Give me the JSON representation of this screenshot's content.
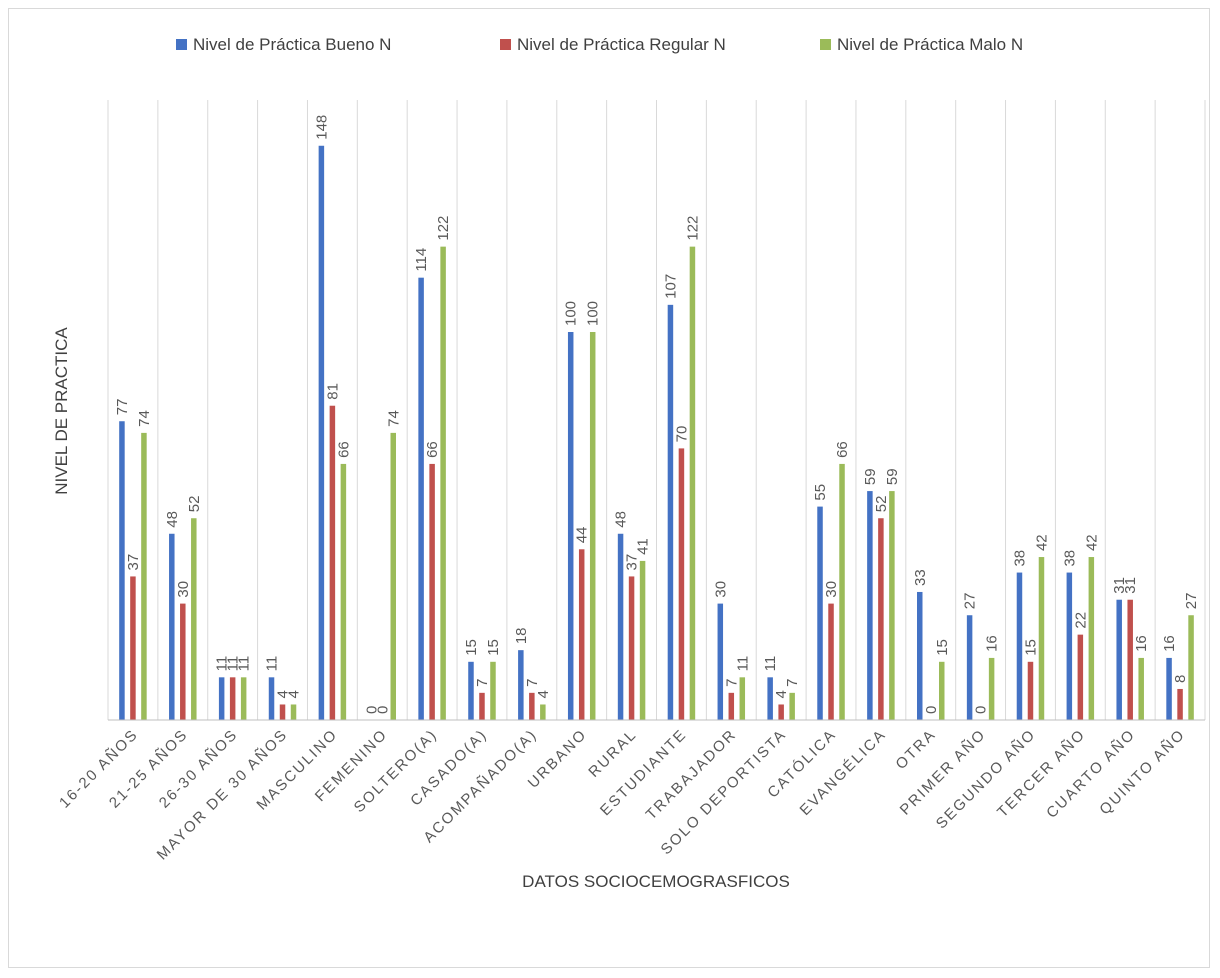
{
  "chart_data": {
    "type": "bar",
    "title": "",
    "xlabel": "DATOS SOCIOCEMOGRASFICOS",
    "ylabel": "NIVEL DE PRACTICA",
    "ylim": [
      0,
      160
    ],
    "grid": true,
    "legend_position": "top",
    "categories": [
      "16-20 AÑOS",
      "21-25 AÑOS",
      "26-30 AÑOS",
      "MAYOR DE 30 AÑOS",
      "MASCULINO",
      "FEMENINO",
      "SOLTERO(A)",
      "CASADO(A)",
      "ACOMPAÑADO(A)",
      "URBANO",
      "RURAL",
      "ESTUDIANTE",
      "TRABAJADOR",
      "SOLO DEPORTISTA",
      "CATÓLICA",
      "EVANGÉLICA",
      "OTRA",
      "PRIMER AÑO",
      "SEGUNDO AÑO",
      "TERCER AÑO",
      "CUARTO AÑO",
      "QUINTO AÑO"
    ],
    "series": [
      {
        "name": "Nivel de Práctica Bueno N",
        "color": "#4472c4",
        "values": [
          77,
          48,
          11,
          11,
          148,
          0,
          114,
          15,
          18,
          100,
          48,
          107,
          30,
          11,
          55,
          59,
          33,
          27,
          38,
          38,
          31,
          16
        ]
      },
      {
        "name": "Nivel de Práctica Regular N",
        "color": "#c0504d",
        "values": [
          37,
          30,
          11,
          4,
          81,
          0,
          66,
          7,
          7,
          44,
          37,
          70,
          7,
          4,
          30,
          52,
          0,
          0,
          15,
          22,
          31,
          8
        ]
      },
      {
        "name": "Nivel de Práctica Malo N",
        "color": "#9bbb59",
        "values": [
          74,
          52,
          11,
          4,
          66,
          74,
          122,
          15,
          4,
          100,
          41,
          122,
          11,
          7,
          66,
          59,
          15,
          16,
          42,
          42,
          16,
          27
        ]
      }
    ]
  }
}
